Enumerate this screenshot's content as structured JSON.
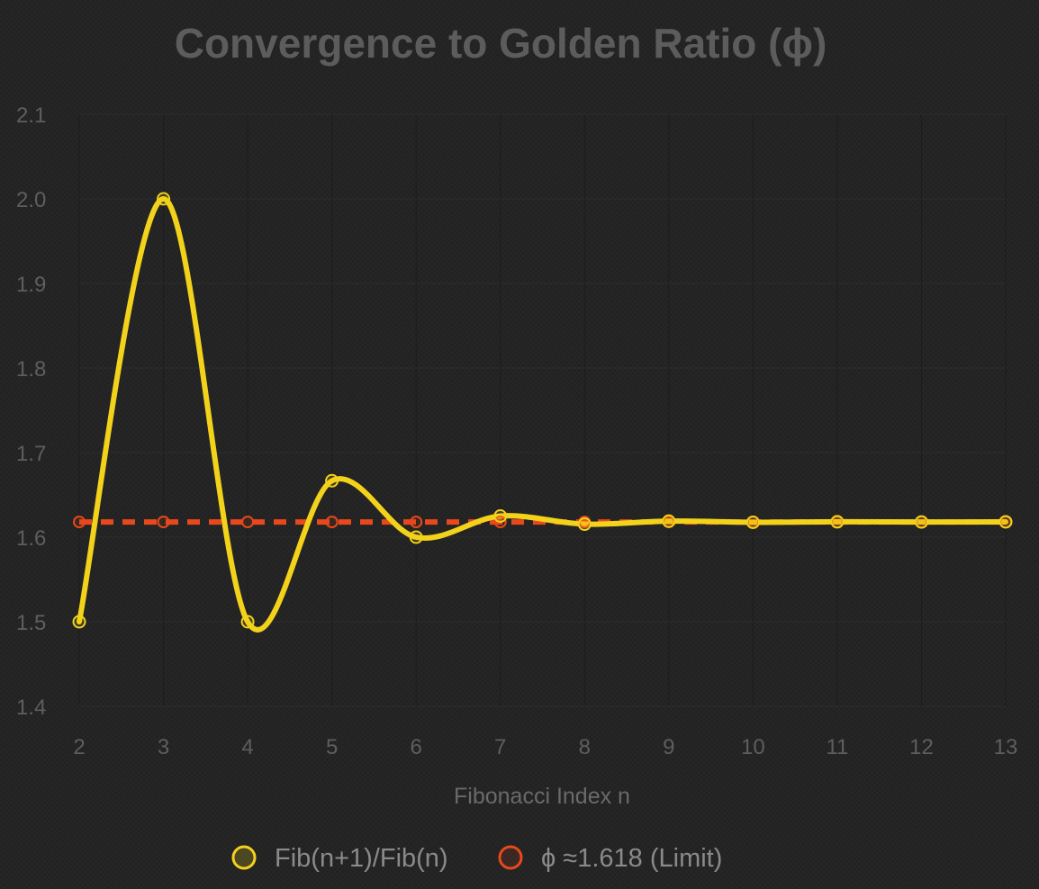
{
  "chart_data": {
    "type": "line",
    "title": "Convergence to Golden Ratio (ϕ)",
    "xlabel": "Fibonacci Index n",
    "ylabel": "",
    "x": [
      2,
      3,
      4,
      5,
      6,
      7,
      8,
      9,
      10,
      11,
      12,
      13
    ],
    "ylim": [
      1.4,
      2.1
    ],
    "yticks": [
      "1.4",
      "1.5",
      "1.6",
      "1.7",
      "1.8",
      "1.9",
      "2.0",
      "2.1"
    ],
    "xticks": [
      "2",
      "3",
      "4",
      "5",
      "6",
      "7",
      "8",
      "9",
      "10",
      "11",
      "12",
      "13"
    ],
    "grid": true,
    "legend_position": "bottom",
    "series": [
      {
        "name": "Fib(n+1)/Fib(n)",
        "color": "#f2d21a",
        "style": "smooth-solid",
        "values": [
          1.5,
          2.0,
          1.5,
          1.6667,
          1.6,
          1.625,
          1.6154,
          1.619,
          1.6176,
          1.6182,
          1.618,
          1.6181
        ]
      },
      {
        "name": "ϕ ≈1.618 (Limit)",
        "color": "#e8481c",
        "style": "dashed",
        "values": [
          1.618,
          1.618,
          1.618,
          1.618,
          1.618,
          1.618,
          1.618,
          1.618,
          1.618,
          1.618,
          1.618,
          1.618
        ]
      }
    ]
  }
}
